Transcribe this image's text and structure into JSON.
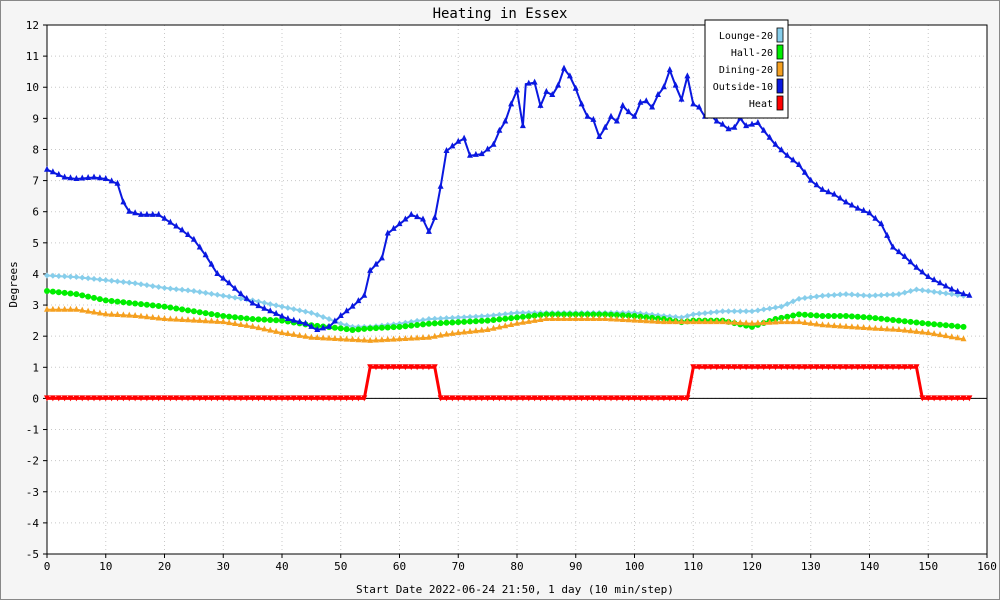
{
  "chart_data": {
    "type": "line",
    "title": "Heating in Essex",
    "xlabel": "Start Date 2022-06-24 21:50, 1 day (10 min/step)",
    "ylabel": "Degrees",
    "xlim": [
      0,
      160
    ],
    "ylim": [
      -5,
      12
    ],
    "xticks": [
      0,
      10,
      20,
      30,
      40,
      50,
      60,
      70,
      80,
      90,
      100,
      110,
      120,
      130,
      140,
      150,
      160
    ],
    "yticks": [
      -5,
      -4,
      -3,
      -2,
      -1,
      0,
      1,
      2,
      3,
      4,
      5,
      6,
      7,
      8,
      9,
      10,
      11,
      12
    ],
    "grid": true,
    "legend_position": "top-right",
    "series": [
      {
        "name": "Lounge-20",
        "color": "#87ceeb",
        "marker": "diamond",
        "points": [
          [
            0,
            3.95
          ],
          [
            5,
            3.9
          ],
          [
            10,
            3.8
          ],
          [
            15,
            3.7
          ],
          [
            20,
            3.55
          ],
          [
            25,
            3.45
          ],
          [
            30,
            3.3
          ],
          [
            35,
            3.15
          ],
          [
            40,
            2.95
          ],
          [
            45,
            2.75
          ],
          [
            48,
            2.55
          ],
          [
            50,
            2.4
          ],
          [
            52,
            2.3
          ],
          [
            55,
            2.3
          ],
          [
            60,
            2.4
          ],
          [
            65,
            2.55
          ],
          [
            70,
            2.6
          ],
          [
            75,
            2.65
          ],
          [
            80,
            2.75
          ],
          [
            85,
            2.75
          ],
          [
            90,
            2.75
          ],
          [
            95,
            2.75
          ],
          [
            100,
            2.75
          ],
          [
            105,
            2.65
          ],
          [
            108,
            2.6
          ],
          [
            110,
            2.7
          ],
          [
            115,
            2.8
          ],
          [
            120,
            2.8
          ],
          [
            125,
            2.95
          ],
          [
            128,
            3.2
          ],
          [
            132,
            3.3
          ],
          [
            136,
            3.35
          ],
          [
            140,
            3.3
          ],
          [
            145,
            3.35
          ],
          [
            148,
            3.5
          ],
          [
            152,
            3.4
          ],
          [
            156,
            3.3
          ]
        ]
      },
      {
        "name": "Hall-20",
        "color": "#00ee00",
        "marker": "circle",
        "points": [
          [
            0,
            3.45
          ],
          [
            5,
            3.35
          ],
          [
            10,
            3.15
          ],
          [
            15,
            3.05
          ],
          [
            20,
            2.95
          ],
          [
            25,
            2.8
          ],
          [
            30,
            2.65
          ],
          [
            35,
            2.55
          ],
          [
            40,
            2.5
          ],
          [
            45,
            2.35
          ],
          [
            50,
            2.25
          ],
          [
            52,
            2.2
          ],
          [
            55,
            2.25
          ],
          [
            60,
            2.3
          ],
          [
            65,
            2.4
          ],
          [
            70,
            2.45
          ],
          [
            75,
            2.5
          ],
          [
            80,
            2.6
          ],
          [
            85,
            2.7
          ],
          [
            90,
            2.7
          ],
          [
            95,
            2.7
          ],
          [
            100,
            2.65
          ],
          [
            105,
            2.55
          ],
          [
            108,
            2.45
          ],
          [
            110,
            2.5
          ],
          [
            115,
            2.5
          ],
          [
            120,
            2.3
          ],
          [
            124,
            2.55
          ],
          [
            128,
            2.7
          ],
          [
            132,
            2.65
          ],
          [
            136,
            2.65
          ],
          [
            140,
            2.6
          ],
          [
            145,
            2.5
          ],
          [
            150,
            2.4
          ],
          [
            156,
            2.3
          ]
        ]
      },
      {
        "name": "Dining-20",
        "color": "#f5a020",
        "marker": "triangle",
        "points": [
          [
            0,
            2.85
          ],
          [
            5,
            2.85
          ],
          [
            10,
            2.7
          ],
          [
            15,
            2.65
          ],
          [
            20,
            2.55
          ],
          [
            25,
            2.5
          ],
          [
            30,
            2.45
          ],
          [
            35,
            2.3
          ],
          [
            40,
            2.1
          ],
          [
            45,
            1.95
          ],
          [
            50,
            1.9
          ],
          [
            55,
            1.85
          ],
          [
            60,
            1.9
          ],
          [
            65,
            1.95
          ],
          [
            68,
            2.05
          ],
          [
            70,
            2.1
          ],
          [
            75,
            2.2
          ],
          [
            80,
            2.4
          ],
          [
            85,
            2.55
          ],
          [
            90,
            2.55
          ],
          [
            95,
            2.55
          ],
          [
            100,
            2.5
          ],
          [
            105,
            2.45
          ],
          [
            110,
            2.45
          ],
          [
            115,
            2.45
          ],
          [
            120,
            2.4
          ],
          [
            125,
            2.45
          ],
          [
            128,
            2.45
          ],
          [
            132,
            2.35
          ],
          [
            136,
            2.3
          ],
          [
            140,
            2.25
          ],
          [
            145,
            2.2
          ],
          [
            150,
            2.1
          ],
          [
            156,
            1.9
          ]
        ]
      },
      {
        "name": "Outside-10",
        "color": "#0a18e0",
        "marker": "triangle",
        "points": [
          [
            0,
            7.35
          ],
          [
            3,
            7.1
          ],
          [
            5,
            7.05
          ],
          [
            8,
            7.1
          ],
          [
            10,
            7.05
          ],
          [
            12,
            6.9
          ],
          [
            13,
            6.3
          ],
          [
            14,
            6.0
          ],
          [
            16,
            5.9
          ],
          [
            19,
            5.9
          ],
          [
            21,
            5.65
          ],
          [
            23,
            5.4
          ],
          [
            25,
            5.1
          ],
          [
            27,
            4.6
          ],
          [
            29,
            4.0
          ],
          [
            31,
            3.7
          ],
          [
            33,
            3.35
          ],
          [
            35,
            3.05
          ],
          [
            38,
            2.8
          ],
          [
            41,
            2.55
          ],
          [
            44,
            2.4
          ],
          [
            46,
            2.2
          ],
          [
            48,
            2.3
          ],
          [
            50,
            2.65
          ],
          [
            52,
            2.95
          ],
          [
            54,
            3.3
          ],
          [
            55,
            4.1
          ],
          [
            57,
            4.5
          ],
          [
            58,
            5.3
          ],
          [
            60,
            5.6
          ],
          [
            62,
            5.9
          ],
          [
            64,
            5.75
          ],
          [
            65,
            5.35
          ],
          [
            66,
            5.8
          ],
          [
            67,
            6.8
          ],
          [
            68,
            7.95
          ],
          [
            70,
            8.25
          ],
          [
            71,
            8.35
          ],
          [
            72,
            7.8
          ],
          [
            74,
            7.85
          ],
          [
            76,
            8.15
          ],
          [
            77,
            8.6
          ],
          [
            78,
            8.9
          ],
          [
            79,
            9.45
          ],
          [
            80,
            9.9
          ],
          [
            81,
            8.75
          ],
          [
            81.5,
            10.1
          ],
          [
            83,
            10.15
          ],
          [
            84,
            9.4
          ],
          [
            85,
            9.85
          ],
          [
            86,
            9.75
          ],
          [
            87,
            10.05
          ],
          [
            88,
            10.6
          ],
          [
            89,
            10.35
          ],
          [
            90,
            9.95
          ],
          [
            91,
            9.45
          ],
          [
            92,
            9.05
          ],
          [
            93,
            8.95
          ],
          [
            94,
            8.4
          ],
          [
            95,
            8.7
          ],
          [
            96,
            9.05
          ],
          [
            97,
            8.9
          ],
          [
            98,
            9.4
          ],
          [
            99,
            9.2
          ],
          [
            100,
            9.05
          ],
          [
            101,
            9.5
          ],
          [
            102,
            9.55
          ],
          [
            103,
            9.35
          ],
          [
            104,
            9.75
          ],
          [
            105,
            10.0
          ],
          [
            106,
            10.55
          ],
          [
            107,
            10.05
          ],
          [
            108,
            9.6
          ],
          [
            109,
            10.35
          ],
          [
            110,
            9.45
          ],
          [
            111,
            9.35
          ],
          [
            112,
            9.05
          ],
          [
            113,
            9.1
          ],
          [
            114,
            8.9
          ],
          [
            115,
            8.8
          ],
          [
            116,
            8.65
          ],
          [
            117,
            8.7
          ],
          [
            118,
            9.0
          ],
          [
            119,
            8.75
          ],
          [
            120,
            8.8
          ],
          [
            121,
            8.85
          ],
          [
            122,
            8.6
          ],
          [
            124,
            8.15
          ],
          [
            126,
            7.8
          ],
          [
            128,
            7.5
          ],
          [
            130,
            7.0
          ],
          [
            132,
            6.7
          ],
          [
            134,
            6.55
          ],
          [
            136,
            6.3
          ],
          [
            138,
            6.1
          ],
          [
            140,
            5.95
          ],
          [
            142,
            5.6
          ],
          [
            144,
            4.85
          ],
          [
            146,
            4.55
          ],
          [
            148,
            4.2
          ],
          [
            150,
            3.9
          ],
          [
            152,
            3.7
          ],
          [
            154,
            3.5
          ],
          [
            156,
            3.35
          ],
          [
            157,
            3.3
          ]
        ]
      },
      {
        "name": "Heat",
        "color": "#ff0000",
        "marker": "triangle-down",
        "points": [
          [
            0,
            0
          ],
          [
            54,
            0
          ],
          [
            55,
            1
          ],
          [
            66,
            1
          ],
          [
            67,
            0
          ],
          [
            109,
            0
          ],
          [
            110,
            1
          ],
          [
            148,
            1
          ],
          [
            149,
            0
          ],
          [
            157,
            0
          ]
        ]
      }
    ]
  }
}
